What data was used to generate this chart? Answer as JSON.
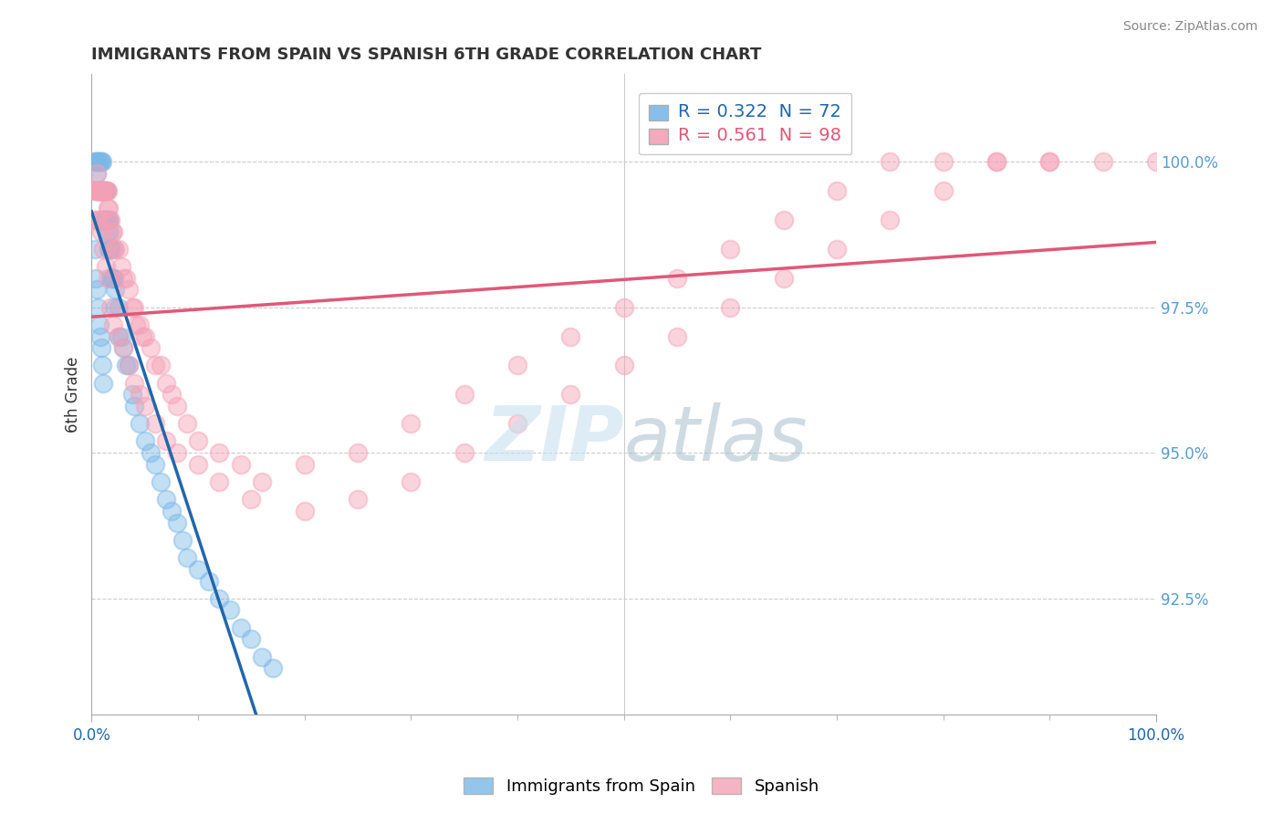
{
  "title": "IMMIGRANTS FROM SPAIN VS SPANISH 6TH GRADE CORRELATION CHART",
  "source_text": "Source: ZipAtlas.com",
  "ylabel": "6th Grade",
  "legend_blue_r": "R = 0.322",
  "legend_blue_n": "N = 72",
  "legend_pink_r": "R = 0.561",
  "legend_pink_n": "N = 98",
  "blue_color": "#7ab8e8",
  "pink_color": "#f4a0b5",
  "blue_line_color": "#2166ac",
  "pink_line_color": "#e05878",
  "right_yticks": [
    92.5,
    95.0,
    97.5,
    100.0
  ],
  "xmin": 0.0,
  "xmax": 1.0,
  "ymin": 90.5,
  "ymax": 101.5,
  "blue_scatter_x": [
    0.003,
    0.004,
    0.005,
    0.005,
    0.006,
    0.006,
    0.007,
    0.007,
    0.008,
    0.008,
    0.009,
    0.009,
    0.01,
    0.01,
    0.01,
    0.011,
    0.011,
    0.012,
    0.012,
    0.013,
    0.013,
    0.014,
    0.014,
    0.015,
    0.015,
    0.016,
    0.016,
    0.017,
    0.017,
    0.018,
    0.018,
    0.019,
    0.019,
    0.02,
    0.021,
    0.022,
    0.022,
    0.025,
    0.025,
    0.028,
    0.03,
    0.032,
    0.035,
    0.038,
    0.04,
    0.045,
    0.05,
    0.055,
    0.06,
    0.065,
    0.07,
    0.075,
    0.08,
    0.085,
    0.09,
    0.1,
    0.11,
    0.12,
    0.13,
    0.14,
    0.15,
    0.16,
    0.17,
    0.003,
    0.004,
    0.005,
    0.006,
    0.007,
    0.008,
    0.009,
    0.01,
    0.011
  ],
  "blue_scatter_y": [
    100.0,
    100.0,
    100.0,
    99.8,
    100.0,
    99.5,
    100.0,
    99.5,
    100.0,
    99.5,
    100.0,
    99.5,
    100.0,
    99.5,
    99.0,
    99.5,
    99.0,
    99.5,
    99.0,
    99.5,
    99.0,
    99.5,
    99.0,
    99.0,
    98.8,
    99.0,
    98.5,
    98.8,
    98.5,
    98.5,
    98.0,
    98.5,
    98.0,
    98.0,
    98.0,
    97.8,
    97.5,
    97.5,
    97.0,
    97.0,
    96.8,
    96.5,
    96.5,
    96.0,
    95.8,
    95.5,
    95.2,
    95.0,
    94.8,
    94.5,
    94.2,
    94.0,
    93.8,
    93.5,
    93.2,
    93.0,
    92.8,
    92.5,
    92.3,
    92.0,
    91.8,
    91.5,
    91.3,
    98.5,
    98.0,
    97.8,
    97.5,
    97.2,
    97.0,
    96.8,
    96.5,
    96.2
  ],
  "pink_scatter_x": [
    0.003,
    0.004,
    0.005,
    0.005,
    0.006,
    0.007,
    0.008,
    0.008,
    0.009,
    0.01,
    0.011,
    0.012,
    0.013,
    0.014,
    0.015,
    0.015,
    0.016,
    0.017,
    0.018,
    0.019,
    0.02,
    0.021,
    0.022,
    0.025,
    0.028,
    0.03,
    0.032,
    0.035,
    0.038,
    0.04,
    0.042,
    0.045,
    0.048,
    0.05,
    0.055,
    0.06,
    0.065,
    0.07,
    0.075,
    0.08,
    0.09,
    0.1,
    0.12,
    0.14,
    0.16,
    0.2,
    0.25,
    0.3,
    0.35,
    0.4,
    0.45,
    0.5,
    0.55,
    0.6,
    0.65,
    0.7,
    0.75,
    0.8,
    0.85,
    0.9,
    0.95,
    1.0,
    0.003,
    0.005,
    0.007,
    0.009,
    0.011,
    0.013,
    0.015,
    0.018,
    0.02,
    0.025,
    0.03,
    0.035,
    0.04,
    0.045,
    0.05,
    0.06,
    0.07,
    0.08,
    0.1,
    0.12,
    0.15,
    0.2,
    0.25,
    0.3,
    0.35,
    0.4,
    0.45,
    0.5,
    0.55,
    0.6,
    0.65,
    0.7,
    0.75,
    0.8,
    0.85,
    0.9
  ],
  "pink_scatter_y": [
    99.5,
    99.5,
    99.8,
    99.5,
    99.5,
    99.5,
    99.5,
    99.5,
    99.5,
    99.5,
    99.5,
    99.5,
    99.5,
    99.5,
    99.5,
    99.2,
    99.2,
    99.0,
    99.0,
    98.8,
    98.8,
    98.5,
    98.5,
    98.5,
    98.2,
    98.0,
    98.0,
    97.8,
    97.5,
    97.5,
    97.2,
    97.2,
    97.0,
    97.0,
    96.8,
    96.5,
    96.5,
    96.2,
    96.0,
    95.8,
    95.5,
    95.2,
    95.0,
    94.8,
    94.5,
    94.8,
    95.0,
    95.5,
    96.0,
    96.5,
    97.0,
    97.5,
    98.0,
    98.5,
    99.0,
    99.5,
    100.0,
    100.0,
    100.0,
    100.0,
    100.0,
    100.0,
    99.0,
    99.0,
    99.0,
    98.8,
    98.5,
    98.2,
    98.0,
    97.5,
    97.2,
    97.0,
    96.8,
    96.5,
    96.2,
    96.0,
    95.8,
    95.5,
    95.2,
    95.0,
    94.8,
    94.5,
    94.2,
    94.0,
    94.2,
    94.5,
    95.0,
    95.5,
    96.0,
    96.5,
    97.0,
    97.5,
    98.0,
    98.5,
    99.0,
    99.5,
    100.0,
    100.0
  ]
}
